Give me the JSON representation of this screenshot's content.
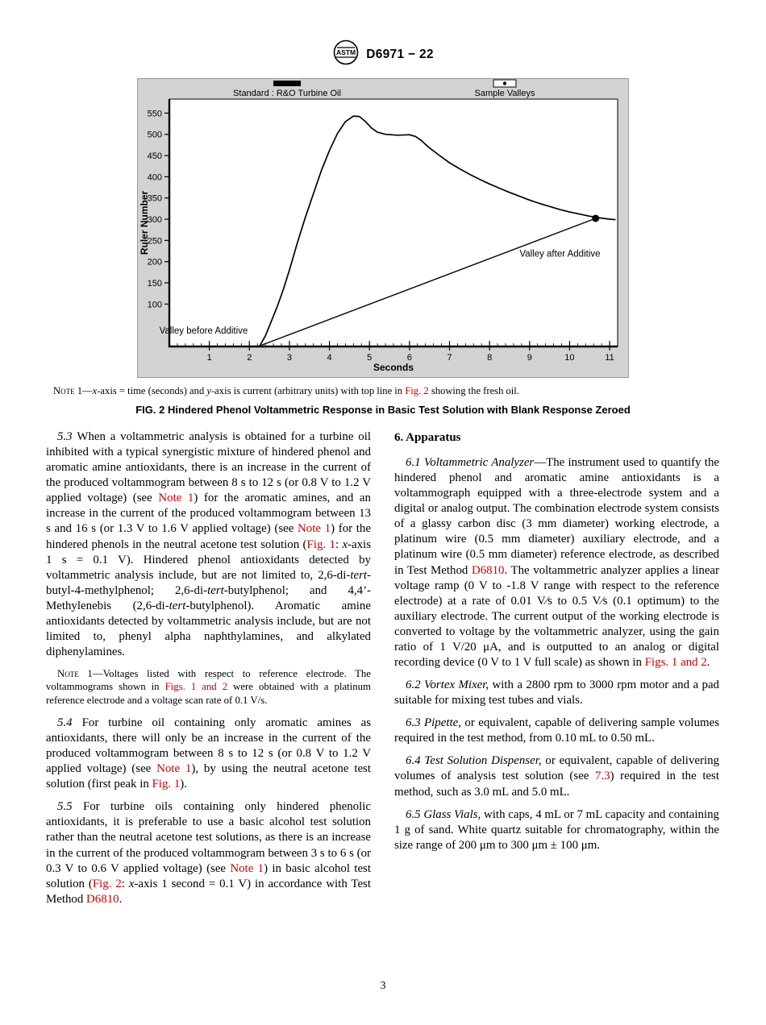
{
  "colors": {
    "link": "#cc0000"
  },
  "header": {
    "logo_text": "ASTM",
    "designation": "D6971 − 22"
  },
  "figure": {
    "caption": "FIG. 2 Hindered Phenol Voltammetric Response in Basic Test Solution with Blank Response Zeroed",
    "note_runs": [
      {
        "t": "Note",
        "sc": true
      },
      {
        "t": " 1—"
      },
      {
        "t": "x",
        "i": true
      },
      {
        "t": "-axis = time (seconds) and "
      },
      {
        "t": "y",
        "i": true
      },
      {
        "t": "-axis is current (arbitrary units) with top line in "
      },
      {
        "t": "Fig. 2",
        "link": true
      },
      {
        "t": " showing the fresh oil."
      }
    ]
  },
  "chart_data": {
    "type": "line",
    "title": "",
    "xlabel": "Seconds",
    "ylabel": "Ruler Number",
    "xlim": [
      0,
      11.2
    ],
    "ylim": [
      0,
      583
    ],
    "x_ticks": [
      1,
      2,
      3,
      4,
      5,
      6,
      7,
      8,
      9,
      10,
      11
    ],
    "y_ticks": [
      100,
      150,
      200,
      250,
      300,
      350,
      400,
      450,
      500,
      550
    ],
    "x_minor_step": 0.2,
    "grid": false,
    "legend_position": "top",
    "colors": {
      "bg": "#d2d2d2",
      "border": "#9a9a9a",
      "line": "#000000"
    },
    "legend": [
      {
        "label": "Standard : R&O Turbine Oil",
        "marker": "solid-bar"
      },
      {
        "label": "Sample Valleys",
        "marker": "box-dot"
      }
    ],
    "series": [
      {
        "name": "Standard : R&O Turbine Oil",
        "points": [
          [
            2.25,
            0
          ],
          [
            2.4,
            25
          ],
          [
            2.55,
            60
          ],
          [
            2.7,
            95
          ],
          [
            2.85,
            135
          ],
          [
            3.0,
            180
          ],
          [
            3.2,
            245
          ],
          [
            3.4,
            305
          ],
          [
            3.6,
            360
          ],
          [
            3.8,
            415
          ],
          [
            4.0,
            462
          ],
          [
            4.2,
            502
          ],
          [
            4.4,
            530
          ],
          [
            4.6,
            543
          ],
          [
            4.75,
            542
          ],
          [
            4.9,
            530
          ],
          [
            5.05,
            515
          ],
          [
            5.2,
            505
          ],
          [
            5.4,
            500
          ],
          [
            5.7,
            498
          ],
          [
            6.0,
            499
          ],
          [
            6.15,
            495
          ],
          [
            6.3,
            485
          ],
          [
            6.5,
            468
          ],
          [
            6.75,
            450
          ],
          [
            7.0,
            433
          ],
          [
            7.25,
            419
          ],
          [
            7.5,
            406
          ],
          [
            7.75,
            394
          ],
          [
            8.0,
            383
          ],
          [
            8.25,
            373
          ],
          [
            8.5,
            363
          ],
          [
            8.75,
            354
          ],
          [
            9.0,
            345
          ],
          [
            9.25,
            337
          ],
          [
            9.5,
            330
          ],
          [
            9.75,
            323
          ],
          [
            10.0,
            317
          ],
          [
            10.25,
            312
          ],
          [
            10.5,
            307
          ],
          [
            10.75,
            303
          ],
          [
            11.0,
            300
          ],
          [
            11.15,
            299
          ]
        ]
      },
      {
        "name": "Sample Valleys",
        "points": [
          [
            2.3,
            3
          ],
          [
            10.65,
            302
          ]
        ],
        "end_dot": true
      }
    ],
    "annotations": [
      {
        "text": "Valley before Additive",
        "x": -0.25,
        "y": 30
      },
      {
        "text": "Valley after Additive",
        "x": 8.75,
        "y": 212
      }
    ]
  },
  "sections": {
    "apparatus_heading": "6. Apparatus"
  },
  "body": {
    "left": [
      {
        "id": "5.3",
        "runs": [
          {
            "t": "5.3 ",
            "i": true
          },
          {
            "t": "When a voltammetric analysis is obtained for a turbine oil inhibited with a typical synergistic mixture of hindered phenol and aromatic amine antioxidants, there is an increase in the current of the produced voltammogram between 8 s to 12 s (or 0.8 V to 1.2 V applied voltage) (see "
          },
          {
            "t": "Note 1",
            "link": true
          },
          {
            "t": ") for the aromatic amines, and an increase in the current of the produced voltammogram between 13 s and 16 s (or 1.3 V to 1.6 V applied voltage) (see "
          },
          {
            "t": "Note 1",
            "link": true
          },
          {
            "t": ") for the hindered phenols in the neutral acetone test solution ("
          },
          {
            "t": "Fig. 1",
            "link": true
          },
          {
            "t": ": "
          },
          {
            "t": "x",
            "i": true
          },
          {
            "t": "-axis 1 s = 0.1 V). Hindered phenol antioxidants detected by voltammetric analysis include, but are not limited to, 2,6-di-"
          },
          {
            "t": "tert",
            "i": true
          },
          {
            "t": "-butyl-4-methylphenol; 2,6-di-"
          },
          {
            "t": "tert",
            "i": true
          },
          {
            "t": "-butylphenol; and 4,4’-Methylenebis (2,6-di-"
          },
          {
            "t": "tert",
            "i": true
          },
          {
            "t": "-butylphenol). Aromatic amine antioxidants detected by voltammetric analysis include, but are not limited to, phenyl alpha naphthylamines, and alkylated diphenylamines."
          }
        ]
      },
      {
        "id": "note-1",
        "runs": [
          {
            "t": "Note",
            "sc": true
          },
          {
            "t": " 1—Voltages listed with respect to reference electrode. The voltammograms shown in "
          },
          {
            "t": "Figs. 1 and 2",
            "link": true
          },
          {
            "t": " were obtained with a platinum reference electrode and a voltage scan rate of 0.1 V/s."
          }
        ]
      },
      {
        "id": "5.4",
        "runs": [
          {
            "t": "5.4 ",
            "i": true
          },
          {
            "t": "For turbine oil containing only aromatic amines as antioxidants, there will only be an increase in the current of the produced voltammogram between 8 s to 12 s (or 0.8 V to 1.2 V applied voltage) (see "
          },
          {
            "t": "Note 1",
            "link": true
          },
          {
            "t": "), by using the neutral acetone test solution (first peak in "
          },
          {
            "t": "Fig. 1",
            "link": true
          },
          {
            "t": ")."
          }
        ]
      },
      {
        "id": "5.5",
        "runs": [
          {
            "t": "5.5 ",
            "i": true
          },
          {
            "t": "For turbine oils containing only hindered phenolic antioxidants, it is preferable to use a basic alcohol test solution rather than the neutral acetone test solutions, as there is an increase in the current of the produced voltammogram between 3 s to 6 s (or 0.3 V to 0.6 V applied voltage) (see "
          },
          {
            "t": "Note 1",
            "link": true
          },
          {
            "t": ") in basic alcohol test solution ("
          },
          {
            "t": "Fig. 2",
            "link": true
          },
          {
            "t": ": "
          },
          {
            "t": "x",
            "i": true
          },
          {
            "t": "-axis 1 second = 0.1 V) in accordance with Test Method "
          },
          {
            "t": "D6810",
            "link": true
          },
          {
            "t": "."
          }
        ]
      }
    ],
    "right": [
      {
        "id": "6.1",
        "runs": [
          {
            "t": "6.1 ",
            "i": true
          },
          {
            "t": "Voltammetric Analyzer",
            "i": true
          },
          {
            "t": "—The instrument used to quantify the hindered phenol and aromatic amine antioxidants is a voltammograph equipped with a three-electrode system and a digital or analog output. The combination electrode system consists of a glassy carbon disc (3 mm diameter) working electrode, a platinum wire (0.5 mm diameter) auxiliary electrode, and a platinum wire (0.5 mm diameter) reference electrode, as described in Test Method "
          },
          {
            "t": "D6810",
            "link": true
          },
          {
            "t": ". The voltammetric analyzer applies a linear voltage ramp (0 V to -1.8 V range with respect to the reference electrode) at a rate of 0.01 V⁄s to 0.5 V⁄s (0.1 optimum) to the auxiliary electrode. The current output of the working electrode is converted to voltage by the voltammetric analyzer, using the gain ratio of 1 V/20 μA, and is outputted to an analog or digital recording device (0 V to 1 V full scale) as shown in "
          },
          {
            "t": "Figs. 1 and 2",
            "link": true
          },
          {
            "t": "."
          }
        ]
      },
      {
        "id": "6.2",
        "runs": [
          {
            "t": "6.2 Vortex Mixer,",
            "i": true
          },
          {
            "t": " with a 2800 rpm to 3000 rpm motor and a pad suitable for mixing test tubes and vials."
          }
        ]
      },
      {
        "id": "6.3",
        "runs": [
          {
            "t": "6.3 Pipette,",
            "i": true
          },
          {
            "t": " or equivalent, capable of delivering sample volumes required in the test method, from 0.10 mL to 0.50 mL."
          }
        ]
      },
      {
        "id": "6.4",
        "runs": [
          {
            "t": "6.4 Test Solution Dispenser,",
            "i": true
          },
          {
            "t": " or equivalent, capable of delivering volumes of analysis test solution (see "
          },
          {
            "t": "7.3",
            "link": true
          },
          {
            "t": ") required in the test method, such as 3.0 mL and 5.0 mL."
          }
        ]
      },
      {
        "id": "6.5",
        "runs": [
          {
            "t": "6.5 Glass Vials,",
            "i": true
          },
          {
            "t": " with caps, 4 mL or 7 mL capacity and containing 1 g of sand. White quartz suitable for chromatography, within the size range of 200 μm to 300 μm ± 100 μm."
          }
        ]
      }
    ]
  },
  "footer": {
    "page_number": "3"
  }
}
